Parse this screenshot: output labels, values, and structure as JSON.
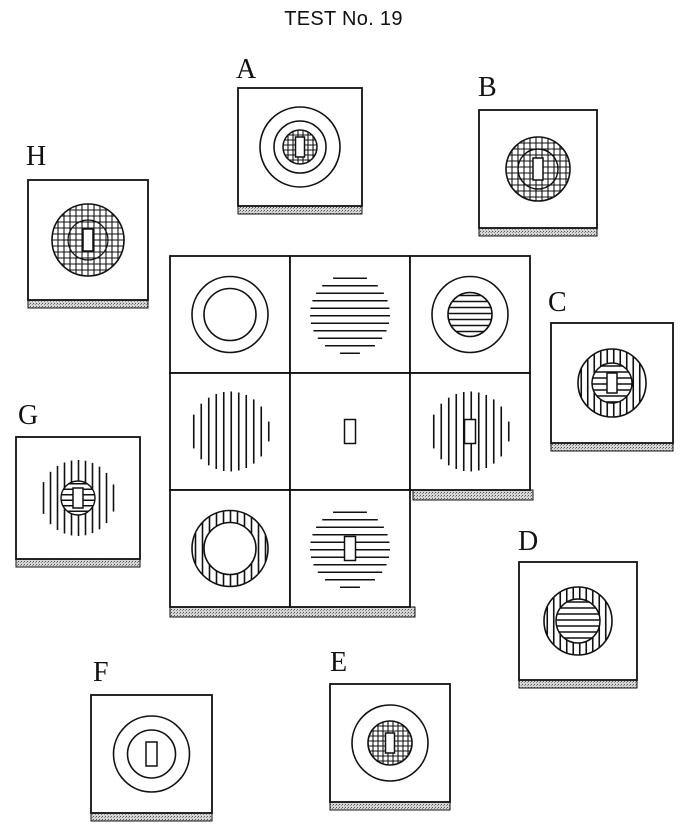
{
  "title": "TEST No. 19",
  "options": {
    "A": "A",
    "B": "B",
    "C": "C",
    "D": "D",
    "E": "E",
    "F": "F",
    "G": "G",
    "H": "H"
  }
}
